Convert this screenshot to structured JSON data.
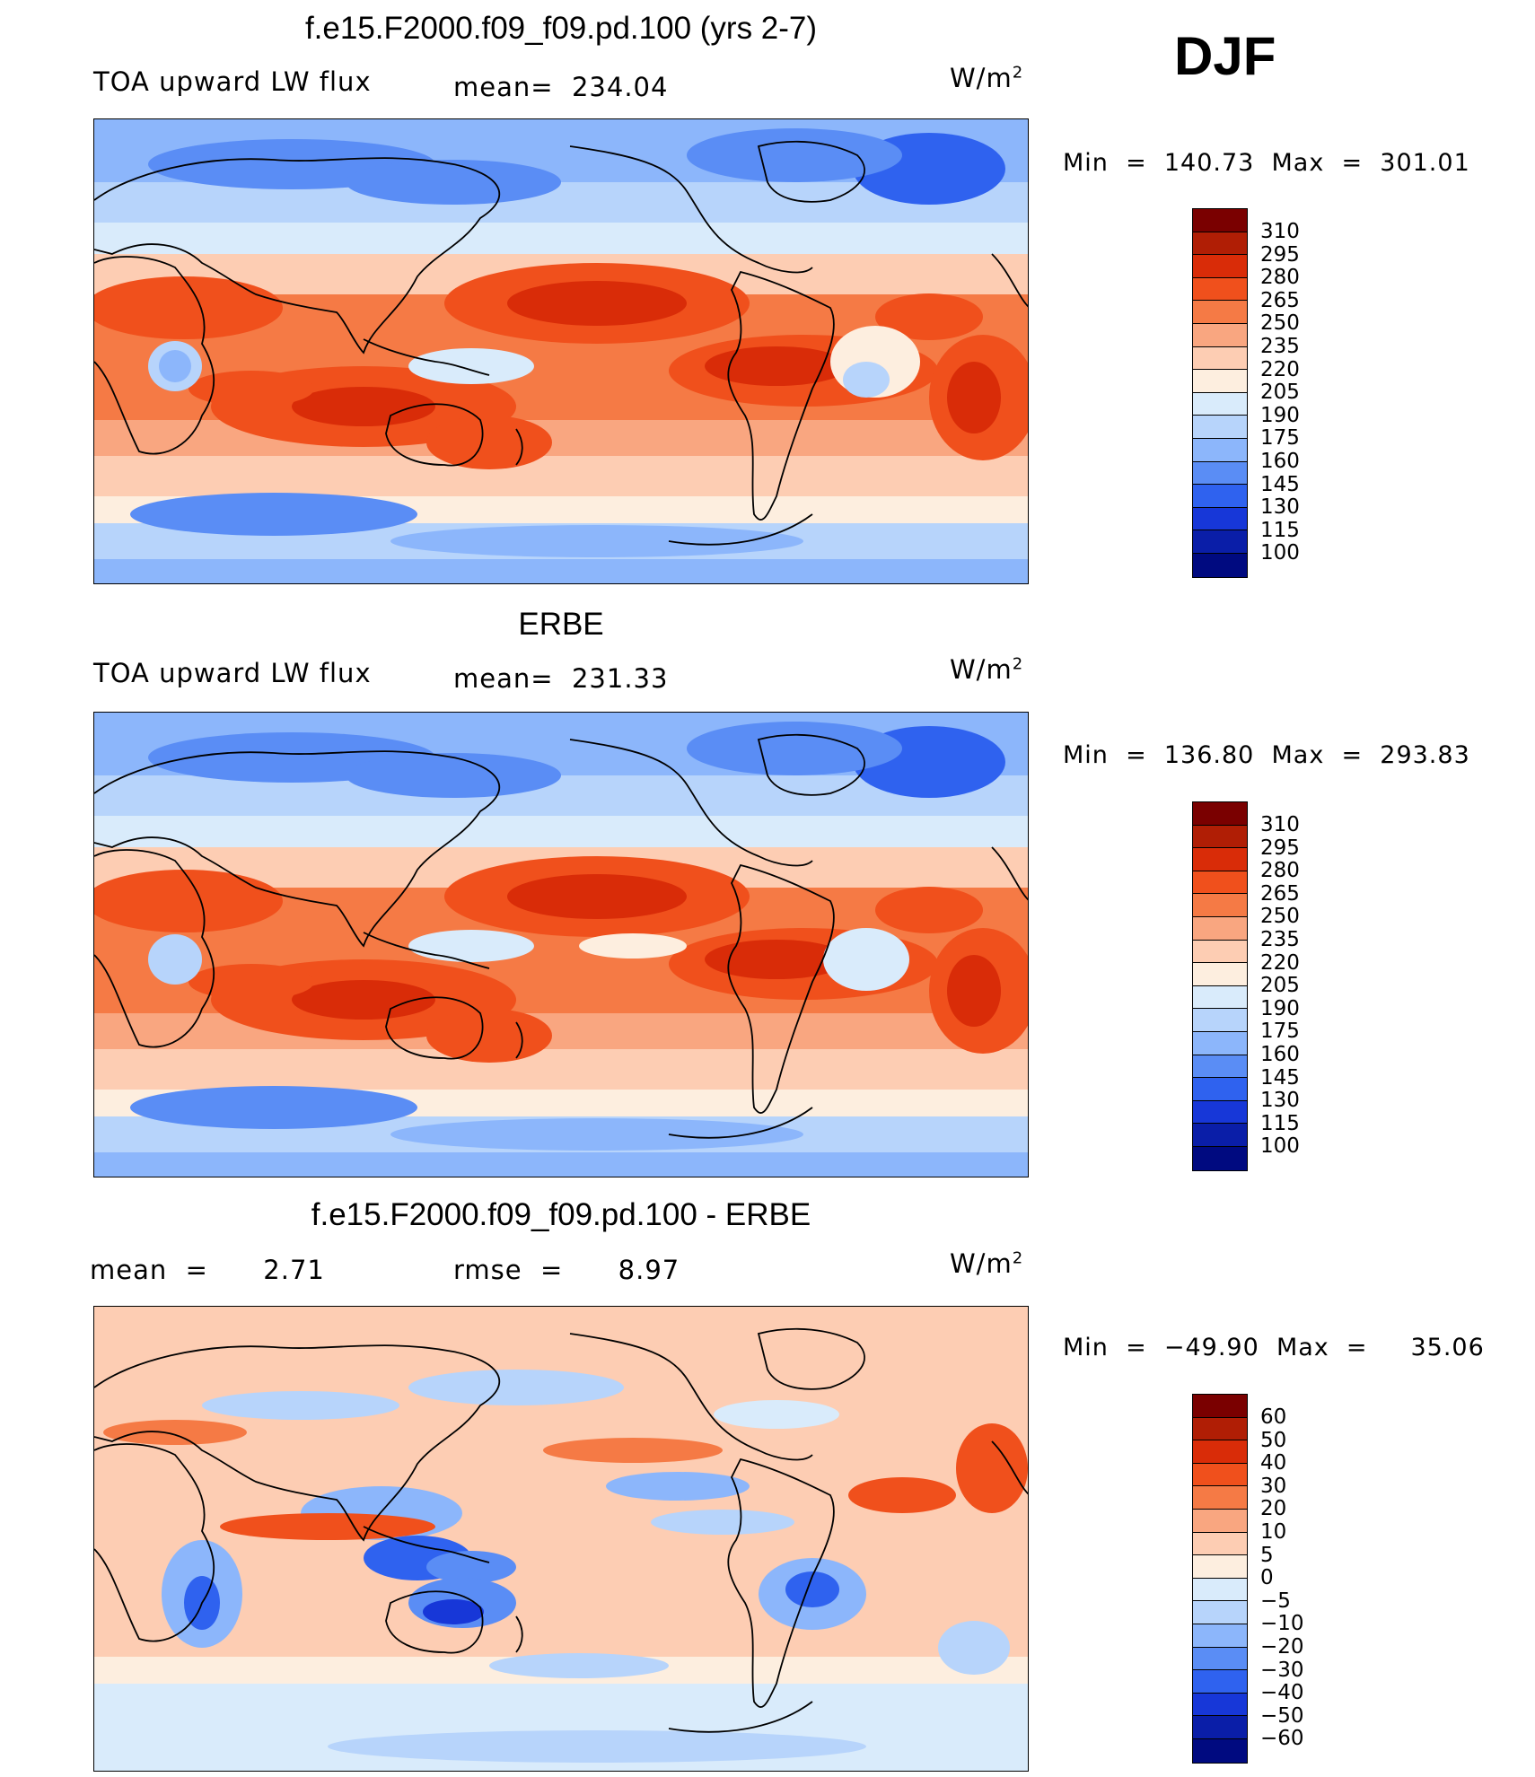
{
  "season": "DJF",
  "panels": [
    {
      "title": "f.e15.F2000.f09_f09.pd.100 (yrs 2-7)",
      "left_label": "TOA upward LW flux",
      "center_label": "mean=  234.04",
      "units_base": "W/m",
      "units_exp": "2",
      "minmax": "Min  =  140.73  Max  =  301.01",
      "colorbar_labels": [
        "310",
        "295",
        "280",
        "265",
        "250",
        "235",
        "220",
        "205",
        "190",
        "175",
        "160",
        "145",
        "130",
        "115",
        "100"
      ],
      "field": "abs"
    },
    {
      "title": "ERBE",
      "left_label": "TOA upward LW flux",
      "center_label": "mean=  231.33",
      "units_base": "W/m",
      "units_exp": "2",
      "minmax": "Min  =  136.80  Max  =  293.83",
      "colorbar_labels": [
        "310",
        "295",
        "280",
        "265",
        "250",
        "235",
        "220",
        "205",
        "190",
        "175",
        "160",
        "145",
        "130",
        "115",
        "100"
      ],
      "field": "abs2"
    },
    {
      "title": "f.e15.F2000.f09_f09.pd.100 - ERBE",
      "left_label": "mean  =      2.71",
      "center_label": "rmse  =      8.97",
      "units_base": "W/m",
      "units_exp": "2",
      "minmax": "Min  =  −49.90  Max  =     35.06",
      "colorbar_labels": [
        "60",
        "50",
        "40",
        "30",
        "20",
        "10",
        "5",
        "0",
        "−5",
        "−10",
        "−20",
        "−30",
        "−40",
        "−50",
        "−60"
      ],
      "field": "diff"
    }
  ],
  "colors": {
    "colorbar": [
      "#7a0000",
      "#b01e05",
      "#d92c08",
      "#f0501c",
      "#f57a45",
      "#f9a680",
      "#fdcdb3",
      "#fdeedf",
      "#d9ebfb",
      "#b7d4fb",
      "#8cb6fb",
      "#5a8df5",
      "#2f62ef",
      "#1737d8",
      "#0a1ea8",
      "#000a80"
    ],
    "coast": "#000000"
  }
}
